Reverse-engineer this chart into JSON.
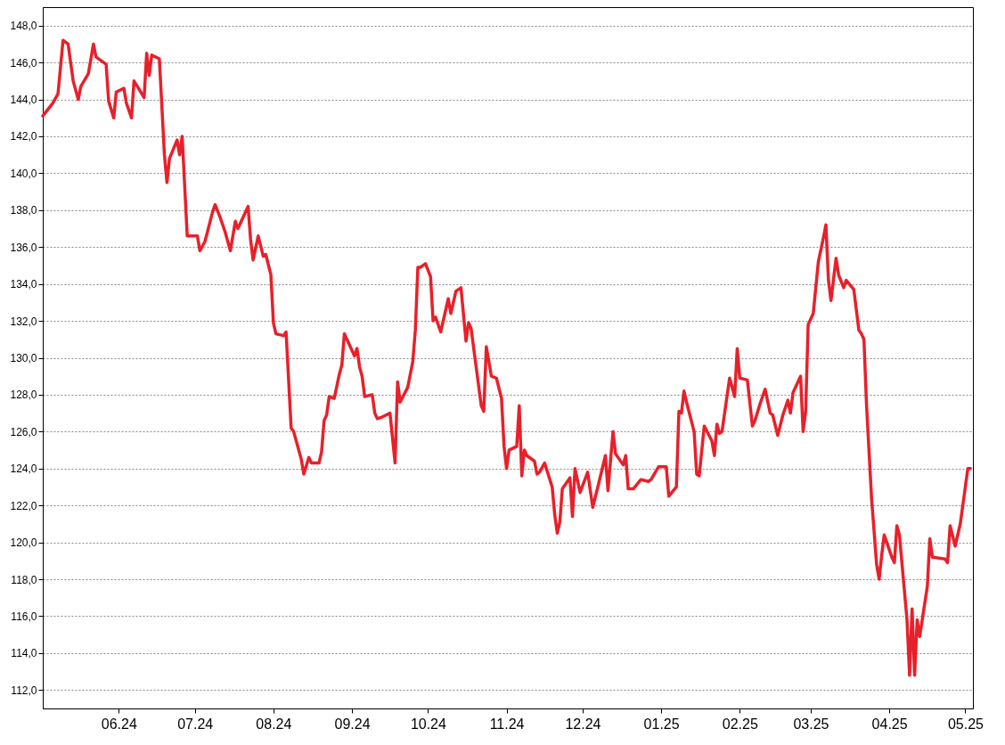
{
  "chart_data": {
    "type": "line",
    "grid": "y",
    "marker": "none",
    "line_style": "solid",
    "xlim": [
      "2024-05-02",
      "2025-05-04"
    ],
    "xticks": [
      {
        "value": "2024-06-01",
        "label": "06.24"
      },
      {
        "value": "2024-07-01",
        "label": "07.24"
      },
      {
        "value": "2024-08-01",
        "label": "08.24"
      },
      {
        "value": "2024-09-01",
        "label": "09.24"
      },
      {
        "value": "2024-10-01",
        "label": "10.24"
      },
      {
        "value": "2024-11-01",
        "label": "11.24"
      },
      {
        "value": "2024-12-01",
        "label": "12.24"
      },
      {
        "value": "2025-01-01",
        "label": "01.25"
      },
      {
        "value": "2025-02-01",
        "label": "02.25"
      },
      {
        "value": "2025-03-01",
        "label": "03.25"
      },
      {
        "value": "2025-04-01",
        "label": "04.25"
      },
      {
        "value": "2025-05-01",
        "label": "05.25"
      }
    ],
    "ylim": [
      111,
      149
    ],
    "yticks": [
      {
        "value": 112,
        "label": "112,0"
      },
      {
        "value": 114,
        "label": "114,0"
      },
      {
        "value": 116,
        "label": "116,0"
      },
      {
        "value": 118,
        "label": "118,0"
      },
      {
        "value": 120,
        "label": "120,0"
      },
      {
        "value": 122,
        "label": "122,0"
      },
      {
        "value": 124,
        "label": "124,0"
      },
      {
        "value": 126,
        "label": "126,0"
      },
      {
        "value": 128,
        "label": "128,0"
      },
      {
        "value": 130,
        "label": "130,0"
      },
      {
        "value": 132,
        "label": "132,0"
      },
      {
        "value": 134,
        "label": "134,0"
      },
      {
        "value": 136,
        "label": "136,0"
      },
      {
        "value": 138,
        "label": "138,0"
      },
      {
        "value": 140,
        "label": "140,0"
      },
      {
        "value": 142,
        "label": "142,0"
      },
      {
        "value": 144,
        "label": "144,0"
      },
      {
        "value": 146,
        "label": "146,0"
      },
      {
        "value": 148,
        "label": "148,0"
      }
    ],
    "series": [
      {
        "color": "#e8202a",
        "x": [
          "2024-05-02",
          "2024-05-06",
          "2024-05-08",
          "2024-05-10",
          "2024-05-12",
          "2024-05-14",
          "2024-05-16",
          "2024-05-17",
          "2024-05-20",
          "2024-05-22",
          "2024-05-23",
          "2024-05-27",
          "2024-05-28",
          "2024-05-30",
          "2024-05-31",
          "2024-06-03",
          "2024-06-04",
          "2024-06-06",
          "2024-06-07",
          "2024-06-11",
          "2024-06-12",
          "2024-06-13",
          "2024-06-14",
          "2024-06-17",
          "2024-06-19",
          "2024-06-20",
          "2024-06-21",
          "2024-06-24",
          "2024-06-25",
          "2024-06-26",
          "2024-06-28",
          "2024-07-02",
          "2024-07-03",
          "2024-07-05",
          "2024-07-08",
          "2024-07-09",
          "2024-07-11",
          "2024-07-13",
          "2024-07-15",
          "2024-07-17",
          "2024-07-18",
          "2024-07-22",
          "2024-07-23",
          "2024-07-24",
          "2024-07-26",
          "2024-07-28",
          "2024-07-29",
          "2024-07-31",
          "2024-08-01",
          "2024-08-02",
          "2024-08-05",
          "2024-08-06",
          "2024-08-08",
          "2024-08-09",
          "2024-08-12",
          "2024-08-13",
          "2024-08-15",
          "2024-08-16",
          "2024-08-19",
          "2024-08-20",
          "2024-08-21",
          "2024-08-22",
          "2024-08-23",
          "2024-08-25",
          "2024-08-27",
          "2024-08-28",
          "2024-08-29",
          "2024-08-31",
          "2024-09-02",
          "2024-09-03",
          "2024-09-04",
          "2024-09-05",
          "2024-09-06",
          "2024-09-09",
          "2024-09-10",
          "2024-09-11",
          "2024-09-13",
          "2024-09-16",
          "2024-09-18",
          "2024-09-19",
          "2024-09-20",
          "2024-09-23",
          "2024-09-25",
          "2024-09-26",
          "2024-09-27",
          "2024-09-28",
          "2024-09-30",
          "2024-10-02",
          "2024-10-03",
          "2024-10-04",
          "2024-10-06",
          "2024-10-08",
          "2024-10-09",
          "2024-10-10",
          "2024-10-12",
          "2024-10-14",
          "2024-10-16",
          "2024-10-17",
          "2024-10-18",
          "2024-10-22",
          "2024-10-23",
          "2024-10-24",
          "2024-10-26",
          "2024-10-28",
          "2024-10-30",
          "2024-10-31",
          "2024-11-01",
          "2024-11-02",
          "2024-11-05",
          "2024-11-06",
          "2024-11-07",
          "2024-11-08",
          "2024-11-09",
          "2024-11-12",
          "2024-11-13",
          "2024-11-14",
          "2024-11-16",
          "2024-11-19",
          "2024-11-20",
          "2024-11-21",
          "2024-11-22",
          "2024-11-23",
          "2024-11-26",
          "2024-11-27",
          "2024-11-28",
          "2024-11-30",
          "2024-12-03",
          "2024-12-05",
          "2024-12-07",
          "2024-12-10",
          "2024-12-11",
          "2024-12-13",
          "2024-12-14",
          "2024-12-17",
          "2024-12-18",
          "2024-12-19",
          "2024-12-21",
          "2024-12-24",
          "2024-12-27",
          "2024-12-28",
          "2024-12-31",
          "2025-01-03",
          "2025-01-04",
          "2025-01-07",
          "2025-01-08",
          "2025-01-09",
          "2025-01-10",
          "2025-01-11",
          "2025-01-14",
          "2025-01-15",
          "2025-01-16",
          "2025-01-18",
          "2025-01-21",
          "2025-01-22",
          "2025-01-23",
          "2025-01-24",
          "2025-01-25",
          "2025-01-28",
          "2025-01-30",
          "2025-01-31",
          "2025-02-01",
          "2025-02-04",
          "2025-02-06",
          "2025-02-07",
          "2025-02-09",
          "2025-02-11",
          "2025-02-13",
          "2025-02-14",
          "2025-02-16",
          "2025-02-18",
          "2025-02-20",
          "2025-02-21",
          "2025-02-22",
          "2025-02-25",
          "2025-02-26",
          "2025-02-27",
          "2025-02-28",
          "2025-03-02",
          "2025-03-03",
          "2025-03-04",
          "2025-03-06",
          "2025-03-07",
          "2025-03-08",
          "2025-03-09",
          "2025-03-11",
          "2025-03-12",
          "2025-03-14",
          "2025-03-15",
          "2025-03-18",
          "2025-03-20",
          "2025-03-21",
          "2025-03-22",
          "2025-03-23",
          "2025-03-25",
          "2025-03-27",
          "2025-03-28",
          "2025-03-29",
          "2025-03-30",
          "2025-04-02",
          "2025-04-03",
          "2025-04-04",
          "2025-04-05",
          "2025-04-08",
          "2025-04-09",
          "2025-04-10",
          "2025-04-11",
          "2025-04-12",
          "2025-04-13",
          "2025-04-16",
          "2025-04-17",
          "2025-04-18",
          "2025-04-23",
          "2025-04-24",
          "2025-04-25",
          "2025-04-27",
          "2025-04-29",
          "2025-05-02",
          "2025-05-03"
        ],
        "values": [
          143.1,
          143.8,
          144.3,
          147.2,
          147.0,
          145.0,
          144.0,
          144.7,
          145.4,
          147.0,
          146.3,
          145.9,
          143.9,
          143.0,
          144.4,
          144.6,
          143.8,
          143.0,
          145.0,
          144.1,
          146.5,
          145.3,
          146.4,
          146.2,
          141.0,
          139.5,
          140.8,
          141.8,
          141.0,
          142.0,
          136.6,
          136.6,
          135.8,
          136.3,
          137.9,
          138.3,
          137.6,
          136.8,
          135.8,
          137.4,
          137.0,
          138.2,
          136.4,
          135.3,
          136.6,
          135.5,
          135.6,
          134.5,
          131.9,
          131.3,
          131.2,
          131.4,
          126.2,
          126.0,
          124.5,
          123.7,
          124.6,
          124.3,
          124.3,
          124.9,
          126.6,
          126.9,
          127.9,
          127.8,
          129.1,
          129.6,
          131.3,
          130.7,
          130.1,
          130.5,
          129.5,
          129.0,
          127.9,
          128.0,
          127.0,
          126.7,
          126.8,
          127.0,
          124.3,
          128.7,
          127.6,
          128.4,
          129.8,
          131.5,
          134.9,
          134.9,
          135.1,
          134.4,
          132.0,
          132.2,
          131.4,
          132.6,
          133.2,
          132.4,
          133.6,
          133.8,
          130.9,
          131.9,
          131.6,
          127.4,
          127.1,
          130.6,
          129.0,
          128.9,
          127.8,
          125.2,
          124.0,
          125.0,
          125.2,
          127.4,
          123.6,
          125.0,
          124.7,
          124.4,
          123.7,
          123.8,
          124.3,
          123.0,
          121.5,
          120.5,
          121.1,
          122.9,
          123.5,
          121.4,
          124.0,
          122.7,
          123.8,
          121.9,
          123.0,
          124.7,
          122.8,
          126.0,
          124.8,
          124.2,
          124.7,
          122.9,
          122.9,
          123.4,
          123.3,
          123.4,
          124.1,
          124.1,
          122.5,
          123.0,
          127.1,
          127.0,
          128.2,
          127.6,
          126.0,
          123.7,
          123.6,
          126.3,
          125.5,
          124.7,
          126.4,
          125.9,
          126.0,
          128.9,
          127.9,
          130.5,
          128.9,
          128.8,
          126.3,
          126.6,
          127.5,
          128.3,
          127.0,
          126.9,
          125.8,
          126.9,
          127.7,
          127.0,
          128.1,
          129.0,
          126.0,
          127.1,
          131.8,
          132.4,
          133.8,
          135.2,
          136.5,
          137.2,
          134.2,
          133.1,
          135.4,
          134.5,
          133.8,
          134.2,
          133.7,
          131.5,
          131.3,
          131.0,
          127.5,
          122.4,
          118.8,
          118.0,
          119.3,
          120.4,
          119.2,
          118.9,
          120.9,
          120.4,
          115.8,
          112.8,
          116.4,
          112.8,
          115.8,
          114.9,
          117.6,
          120.2,
          119.2,
          119.1,
          118.9,
          120.9,
          119.8,
          121.0,
          124.0,
          124.0
        ]
      }
    ]
  }
}
